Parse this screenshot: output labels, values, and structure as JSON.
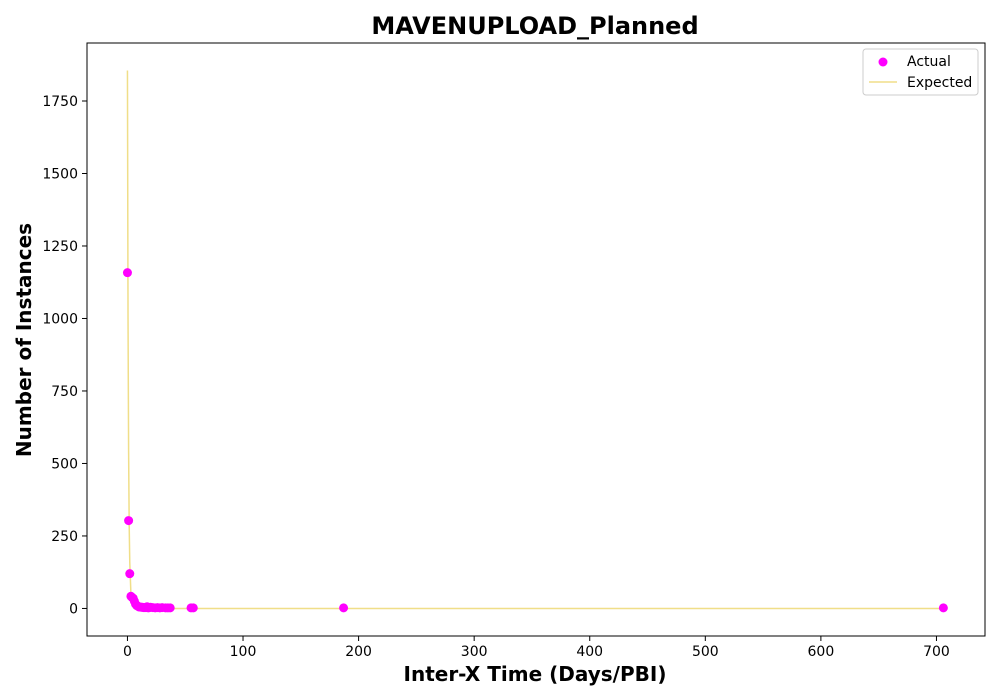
{
  "chart_data": {
    "type": "scatter",
    "title": "MAVENUPLOAD_Planned",
    "xlabel": "Inter-X Time (Days/PBI)",
    "ylabel": "Number of Instances",
    "xlim": [
      -35,
      742
    ],
    "ylim": [
      -95,
      1950
    ],
    "xticks": [
      0,
      100,
      200,
      300,
      400,
      500,
      600,
      700
    ],
    "yticks": [
      0,
      250,
      500,
      750,
      1000,
      1250,
      1500,
      1750
    ],
    "legend_position": "top-right",
    "grid": false,
    "series": [
      {
        "name": "Actual",
        "kind": "scatter",
        "color": "#ff00ff",
        "x": [
          0,
          1,
          2,
          3,
          4,
          5,
          6,
          7,
          8,
          9,
          10,
          11,
          12,
          13,
          14,
          15,
          16,
          17,
          18,
          19,
          20,
          22,
          24,
          26,
          28,
          30,
          33,
          35,
          37,
          55,
          57,
          187,
          706
        ],
        "y": [
          1158,
          303,
          120,
          42,
          38,
          35,
          25,
          15,
          10,
          8,
          5,
          5,
          4,
          4,
          3,
          3,
          3,
          6,
          2,
          3,
          4,
          3,
          2,
          3,
          2,
          3,
          2,
          2,
          2,
          2,
          2,
          2,
          2
        ]
      },
      {
        "name": "Expected",
        "kind": "line",
        "color": "#f0de88",
        "x": [
          0,
          0.5,
          1,
          1.5,
          2,
          3,
          4,
          5,
          6,
          8,
          10,
          15,
          20,
          30,
          50,
          100,
          200,
          400,
          706
        ],
        "y": [
          1855,
          1000,
          540,
          290,
          160,
          50,
          15,
          5,
          2,
          0.3,
          0,
          0,
          0,
          0,
          0,
          0,
          0,
          0,
          0
        ]
      }
    ]
  }
}
